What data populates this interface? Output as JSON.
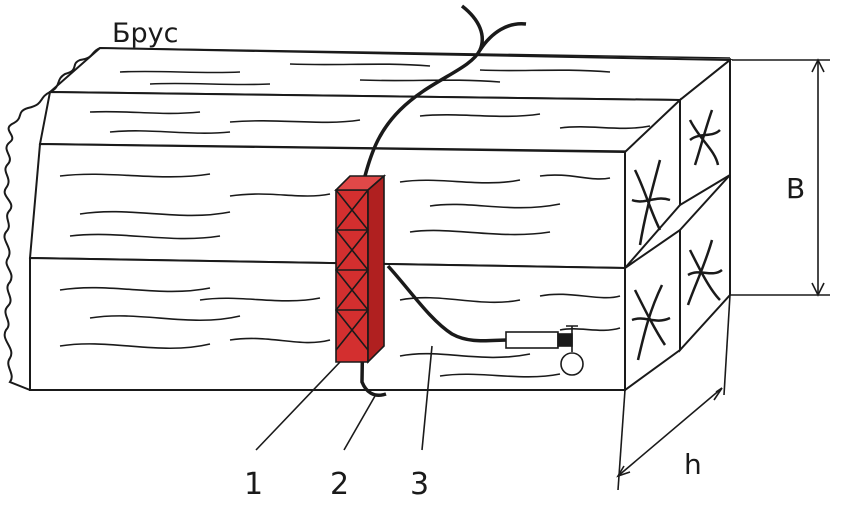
{
  "title": "Брус",
  "labels": {
    "item1": "1",
    "item2": "2",
    "item3": "3"
  },
  "dimensions": {
    "height_label": "B",
    "depth_label": "h"
  },
  "colors": {
    "clamp_fill": "#d32f2f",
    "line": "#1a1a1a"
  }
}
